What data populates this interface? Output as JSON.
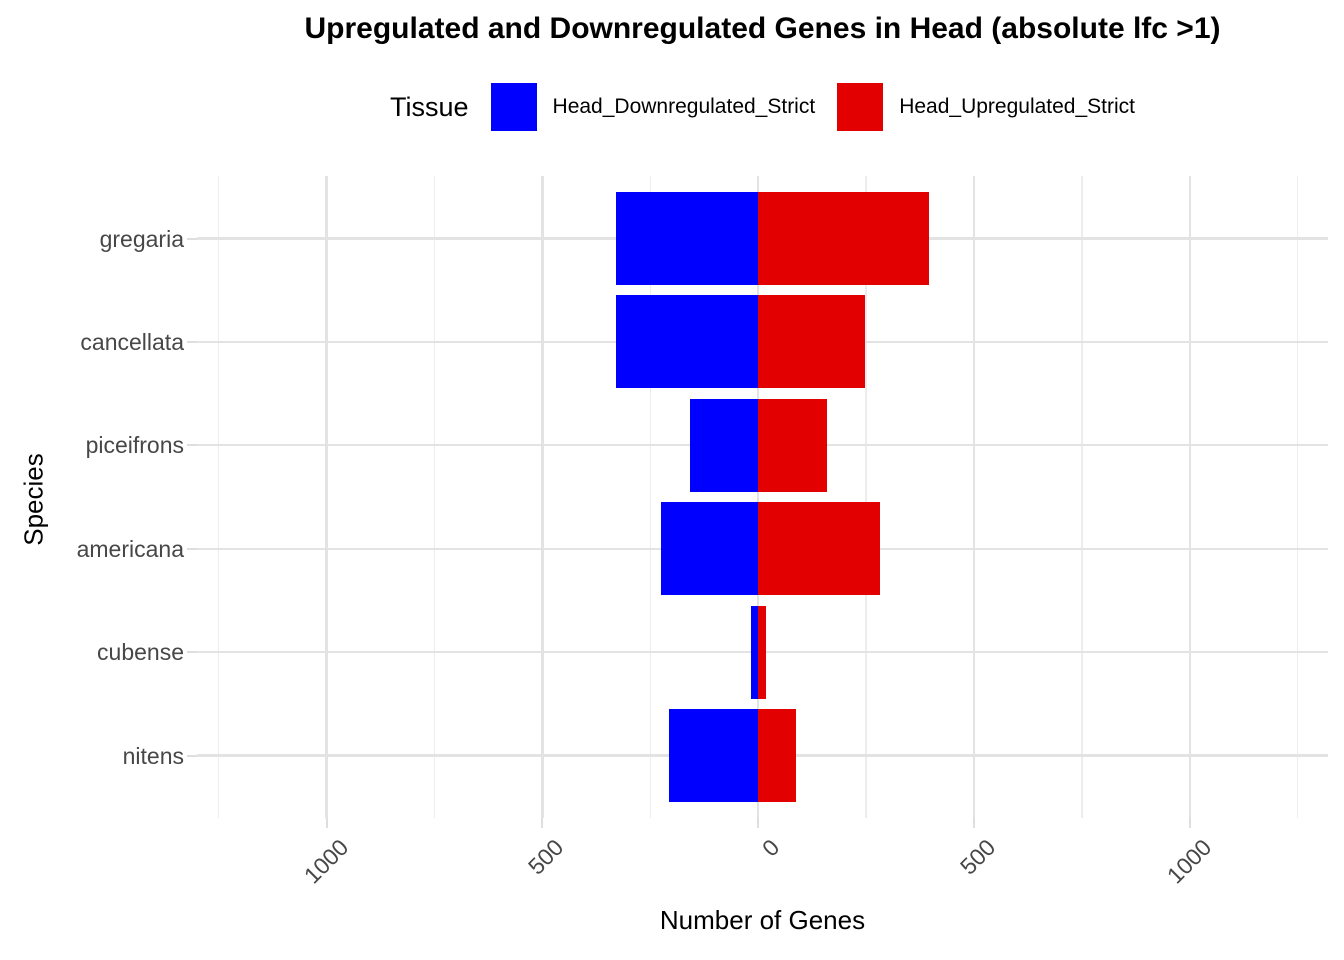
{
  "title": "Upregulated and Downregulated Genes in Head (absolute lfc >1)",
  "legend": {
    "title": "Tissue",
    "position": "top",
    "items": [
      {
        "label": "Head_Downregulated_Strict",
        "color": "#0000FF"
      },
      {
        "label": "Head_Upregulated_Strict",
        "color": "#E20000"
      }
    ]
  },
  "chart_data": {
    "type": "bar",
    "orientation": "horizontal-diverging",
    "title": "Upregulated and Downregulated Genes in Head (absolute lfc >1)",
    "categories": [
      "gregaria",
      "cancellata",
      "piceifrons",
      "americana",
      "cubense",
      "nitens"
    ],
    "series": [
      {
        "name": "Head_Downregulated_Strict",
        "direction": "negative",
        "color": "#0000FF",
        "values": [
          330,
          330,
          159,
          224,
          16,
          207
        ]
      },
      {
        "name": "Head_Upregulated_Strict",
        "direction": "positive",
        "color": "#E20000",
        "values": [
          395,
          247,
          160,
          282,
          19,
          87
        ]
      }
    ],
    "xlabel": "Number of Genes",
    "ylabel": "Species",
    "xlim": [
      -1300,
      1320
    ],
    "x_major_ticks": [
      {
        "value": -1000,
        "label": "1000"
      },
      {
        "value": -500,
        "label": "500"
      },
      {
        "value": 0,
        "label": "0"
      },
      {
        "value": 500,
        "label": "500"
      },
      {
        "value": 1000,
        "label": "1000"
      }
    ],
    "x_minor_ticks": [
      -1250,
      -750,
      -250,
      250,
      750,
      1250
    ],
    "grid": true,
    "legend_position": "top",
    "background": "#FFFFFF",
    "grid_major_color": "#E3E3E3",
    "grid_minor_color": "#EDEDED",
    "bar_colors": {
      "downregulated": "#0000FF",
      "upregulated": "#E20000"
    }
  }
}
